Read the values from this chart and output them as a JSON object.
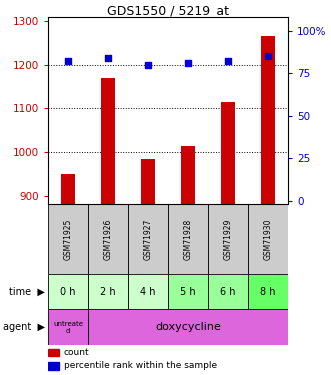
{
  "title": "GDS1550 / 5219_at",
  "samples": [
    "GSM71925",
    "GSM71926",
    "GSM71927",
    "GSM71928",
    "GSM71929",
    "GSM71930"
  ],
  "count_values": [
    950,
    1170,
    985,
    1015,
    1115,
    1265
  ],
  "percentile_values": [
    82,
    84,
    80,
    81,
    82,
    85
  ],
  "left_ylim": [
    880,
    1310
  ],
  "left_yticks": [
    900,
    1000,
    1100,
    1200,
    1300
  ],
  "right_ylim": [
    -2,
    108
  ],
  "right_yticks": [
    0,
    25,
    50,
    75,
    100
  ],
  "right_yticklabels": [
    "0",
    "25",
    "50",
    "75",
    "100%"
  ],
  "bar_color": "#cc0000",
  "dot_color": "#0000cc",
  "left_tick_color": "#cc0000",
  "right_tick_color": "#0000cc",
  "time_labels": [
    "0 h",
    "2 h",
    "4 h",
    "5 h",
    "6 h",
    "8 h"
  ],
  "time_bg_colors": [
    "#ccffcc",
    "#ccffcc",
    "#ccffcc",
    "#99ff99",
    "#99ff99",
    "#66ff66"
  ],
  "agent_bg_color": "#dd66dd",
  "sample_bg_color": "#cccccc",
  "bar_bottom": 880,
  "legend_count_color": "#cc0000",
  "legend_dot_color": "#0000cc",
  "grid_lines": [
    1000,
    1100,
    1200
  ],
  "bar_width": 0.35
}
